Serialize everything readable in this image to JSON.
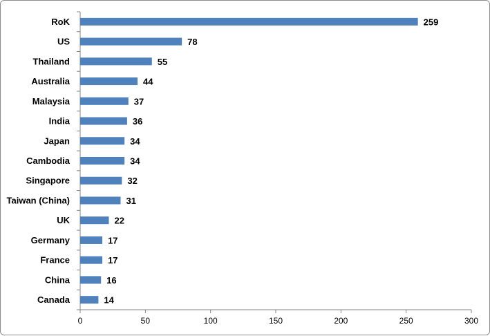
{
  "chart_data": {
    "type": "bar",
    "orientation": "horizontal",
    "categories": [
      "RoK",
      "US",
      "Thailand",
      "Australia",
      "Malaysia",
      "India",
      "Japan",
      "Cambodia",
      "Singapore",
      "Taiwan (China)",
      "UK",
      "Germany",
      "France",
      "China",
      "Canada"
    ],
    "values": [
      259,
      78,
      55,
      44,
      37,
      36,
      34,
      34,
      32,
      31,
      22,
      17,
      17,
      16,
      14
    ],
    "value_labels": [
      "259",
      "78",
      "55",
      "44",
      "37",
      "36",
      "34",
      "34",
      "32",
      "31",
      "22",
      "17",
      "17",
      "16",
      "14"
    ],
    "xlim": [
      0,
      300
    ],
    "x_ticks": [
      0,
      50,
      100,
      150,
      200,
      250,
      300
    ],
    "x_tick_labels": [
      "0",
      "50",
      "100",
      "150",
      "200",
      "250",
      "300"
    ],
    "title": "",
    "xlabel": "",
    "ylabel": "",
    "grid": false,
    "legend": "none",
    "bar_color": "#4f81bd"
  }
}
